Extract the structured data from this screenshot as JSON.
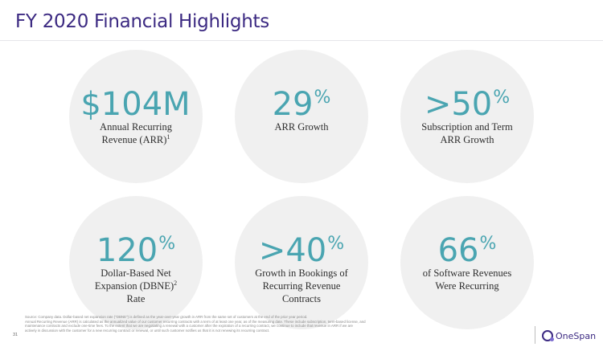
{
  "slide": {
    "title": "FY 2020 Financial Highlights",
    "page_number": "31",
    "brand": {
      "logo_text": "OneSpan",
      "accent_color": "#3c2a82",
      "metric_color": "#4aa5b1"
    }
  },
  "metrics": [
    {
      "value": "$104M",
      "suffix": "",
      "label_lines": [
        "Annual Recurring",
        "Revenue (ARR)"
      ],
      "label_sup": "1"
    },
    {
      "value": "29",
      "suffix": "%",
      "label_lines": [
        "ARR Growth"
      ],
      "label_sup": ""
    },
    {
      "value": ">50",
      "suffix": "%",
      "label_lines": [
        "Subscription and Term",
        "ARR Growth"
      ],
      "label_sup": ""
    },
    {
      "value": "120",
      "suffix": "%",
      "label_lines": [
        "Dollar-Based Net",
        "Expansion (DBNE)",
        "Rate"
      ],
      "label_sup": "2"
    },
    {
      "value": ">40",
      "suffix": "%",
      "label_lines": [
        "Growth in Bookings of",
        "Recurring Revenue",
        "Contracts"
      ],
      "label_sup": ""
    },
    {
      "value": "66",
      "suffix": "%",
      "label_lines": [
        "of Software Revenues",
        "Were Recurring"
      ],
      "label_sup": ""
    }
  ],
  "footnote": {
    "lines": [
      "Source: Company data. Dollar-based net expansion rate (\"DBNE\") is defined as the year-over-year growth in ARR from the same set of customers at the end of the prior year period.",
      "Annual Recurring Revenue (ARR) is calculated as the annualized value of our customer recurring contracts with a term of at least one year, as of the measuring date. These include subscription, term-based license, and",
      "maintenance contracts and exclude one-time fees. To the extent that we are negotiating a renewal with a customer after the expiration of a recurring contract, we continue to include that revenue in ARR if we are",
      "actively in discussion with the customer for a new recurring contract or renewal, or until such customer notifies us that it is not renewing its recurring contract."
    ]
  }
}
